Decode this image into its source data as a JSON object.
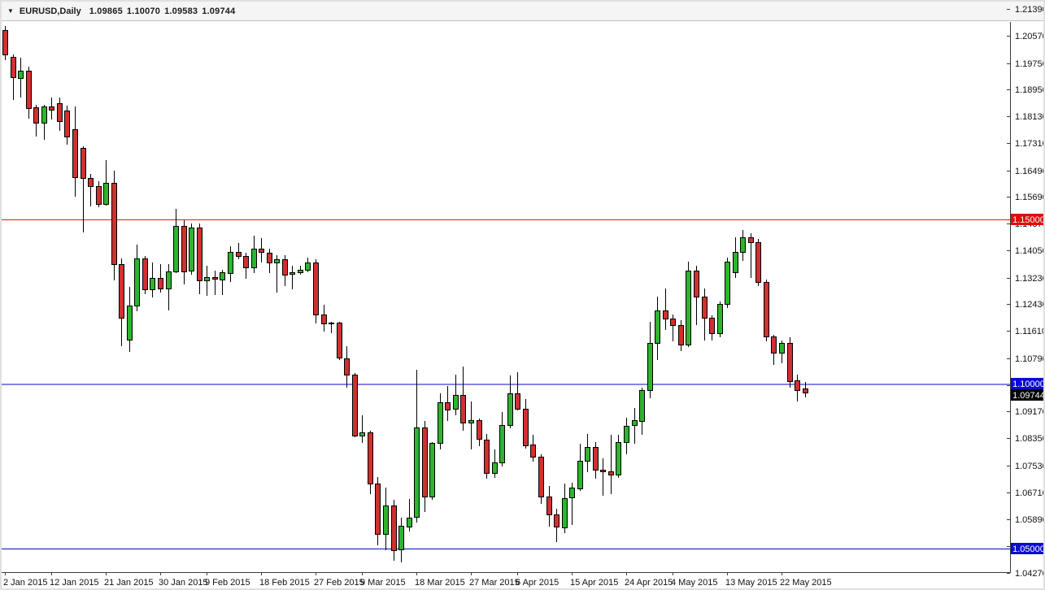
{
  "header": {
    "symbol_period": "EURUSD,Daily",
    "open": "1.09865",
    "high": "1.10070",
    "low": "1.09583",
    "close": "1.09744"
  },
  "colors": {
    "bull_body": "#2eb42e",
    "bear_body": "#d13030",
    "outline": "#000000",
    "axis": "#3a3a3a",
    "text": "#111111",
    "resistance_line": "#ee1111",
    "support_line": "#0808c8",
    "resistance_badge": "#dd0d0d",
    "support_badge": "#0b0bd0",
    "current_badge": "#000000",
    "badge_text": "#ffffff",
    "background": "#ffffff"
  },
  "chart_data": {
    "type": "candlestick",
    "symbol": "EURUSD",
    "timeframe": "Daily",
    "ylim": [
      1.0427,
      1.2139
    ],
    "grid": false,
    "y_axis_ticks": [
      "1.21390",
      "1.20570",
      "1.19750",
      "1.18950",
      "1.18130",
      "1.17310",
      "1.16490",
      "1.15690",
      "1.14870",
      "1.14050",
      "1.13230",
      "1.12430",
      "1.11610",
      "1.10790",
      "1.09970",
      "1.09170",
      "1.08350",
      "1.07530",
      "1.06710",
      "1.05890",
      "1.05080",
      "1.04270"
    ],
    "x_axis_labels": [
      {
        "label": "2 Jan 2015",
        "index": 0
      },
      {
        "label": "12 Jan 2015",
        "index": 6
      },
      {
        "label": "21 Jan 2015",
        "index": 13
      },
      {
        "label": "30 Jan 2015",
        "index": 20
      },
      {
        "label": "9 Feb 2015",
        "index": 26
      },
      {
        "label": "18 Feb 2015",
        "index": 33
      },
      {
        "label": "27 Feb 2015",
        "index": 40
      },
      {
        "label": "9 Mar 2015",
        "index": 46
      },
      {
        "label": "18 Mar 2015",
        "index": 53
      },
      {
        "label": "27 Mar 2015",
        "index": 60
      },
      {
        "label": "6 Apr 2015",
        "index": 66
      },
      {
        "label": "15 Apr 2015",
        "index": 73
      },
      {
        "label": "24 Apr 2015",
        "index": 80
      },
      {
        "label": "4 May 2015",
        "index": 86
      },
      {
        "label": "13 May 2015",
        "index": 93
      },
      {
        "label": "22 May 2015",
        "index": 100
      }
    ],
    "hlines": [
      {
        "price": 1.15,
        "badge": "1.15000",
        "kind": "resistance"
      },
      {
        "price": 1.1,
        "badge": "1.10000",
        "kind": "support"
      },
      {
        "price": 1.05,
        "badge": "1.05000",
        "kind": "support"
      }
    ],
    "current_price": {
      "value": 1.09744,
      "badge": "1.09744"
    },
    "candles": [
      {
        "d": "2 Jan",
        "o": 1.2075,
        "h": 1.2088,
        "l": 1.1985,
        "c": 1.2
      },
      {
        "d": "5 Jan",
        "o": 1.1995,
        "h": 1.2,
        "l": 1.1862,
        "c": 1.1933
      },
      {
        "d": "6 Jan",
        "o": 1.1931,
        "h": 1.1992,
        "l": 1.1871,
        "c": 1.1953
      },
      {
        "d": "7 Jan",
        "o": 1.1953,
        "h": 1.1964,
        "l": 1.1805,
        "c": 1.184
      },
      {
        "d": "8 Jan",
        "o": 1.184,
        "h": 1.1848,
        "l": 1.1752,
        "c": 1.1793
      },
      {
        "d": "9 Jan",
        "o": 1.1793,
        "h": 1.1847,
        "l": 1.1742,
        "c": 1.1843
      },
      {
        "d": "12 Jan",
        "o": 1.1843,
        "h": 1.1871,
        "l": 1.1804,
        "c": 1.1834
      },
      {
        "d": "13 Jan",
        "o": 1.1852,
        "h": 1.187,
        "l": 1.177,
        "c": 1.1798
      },
      {
        "d": "14 Jan",
        "o": 1.1832,
        "h": 1.1846,
        "l": 1.1728,
        "c": 1.1753
      },
      {
        "d": "15 Jan",
        "o": 1.1775,
        "h": 1.1844,
        "l": 1.1568,
        "c": 1.163
      },
      {
        "d": "16 Jan",
        "o": 1.1717,
        "h": 1.1722,
        "l": 1.146,
        "c": 1.1626
      },
      {
        "d": "19 Jan",
        "o": 1.1626,
        "h": 1.1639,
        "l": 1.154,
        "c": 1.1601
      },
      {
        "d": "20 Jan",
        "o": 1.1601,
        "h": 1.1617,
        "l": 1.1538,
        "c": 1.1546
      },
      {
        "d": "21 Jan",
        "o": 1.1546,
        "h": 1.168,
        "l": 1.1541,
        "c": 1.161
      },
      {
        "d": "22 Jan",
        "o": 1.161,
        "h": 1.1649,
        "l": 1.1315,
        "c": 1.1363
      },
      {
        "d": "23 Jan",
        "o": 1.1363,
        "h": 1.1382,
        "l": 1.1115,
        "c": 1.1201
      },
      {
        "d": "26 Jan",
        "o": 1.1135,
        "h": 1.1296,
        "l": 1.1098,
        "c": 1.1239
      },
      {
        "d": "27 Jan",
        "o": 1.1239,
        "h": 1.1423,
        "l": 1.1222,
        "c": 1.1382
      },
      {
        "d": "28 Jan",
        "o": 1.1382,
        "h": 1.139,
        "l": 1.1272,
        "c": 1.1287
      },
      {
        "d": "29 Jan",
        "o": 1.1287,
        "h": 1.1368,
        "l": 1.1262,
        "c": 1.1322
      },
      {
        "d": "30 Jan",
        "o": 1.1322,
        "h": 1.1363,
        "l": 1.1279,
        "c": 1.1291
      },
      {
        "d": "2 Feb",
        "o": 1.1291,
        "h": 1.1363,
        "l": 1.1224,
        "c": 1.1342
      },
      {
        "d": "3 Feb",
        "o": 1.1342,
        "h": 1.1533,
        "l": 1.1336,
        "c": 1.1481
      },
      {
        "d": "4 Feb",
        "o": 1.1481,
        "h": 1.1497,
        "l": 1.1303,
        "c": 1.1343
      },
      {
        "d": "5 Feb",
        "o": 1.1343,
        "h": 1.1488,
        "l": 1.1331,
        "c": 1.1475
      },
      {
        "d": "6 Feb",
        "o": 1.1475,
        "h": 1.1488,
        "l": 1.1272,
        "c": 1.1315
      },
      {
        "d": "9 Feb",
        "o": 1.1315,
        "h": 1.1359,
        "l": 1.1269,
        "c": 1.1324
      },
      {
        "d": "10 Feb",
        "o": 1.1324,
        "h": 1.1345,
        "l": 1.127,
        "c": 1.1318
      },
      {
        "d": "11 Feb",
        "o": 1.1318,
        "h": 1.1346,
        "l": 1.127,
        "c": 1.1339
      },
      {
        "d": "12 Feb",
        "o": 1.1339,
        "h": 1.1418,
        "l": 1.1309,
        "c": 1.1402
      },
      {
        "d": "13 Feb",
        "o": 1.1402,
        "h": 1.1429,
        "l": 1.1378,
        "c": 1.1389
      },
      {
        "d": "16 Feb",
        "o": 1.1389,
        "h": 1.1399,
        "l": 1.132,
        "c": 1.1355
      },
      {
        "d": "17 Feb",
        "o": 1.1355,
        "h": 1.145,
        "l": 1.1336,
        "c": 1.1411
      },
      {
        "d": "18 Feb",
        "o": 1.1411,
        "h": 1.1444,
        "l": 1.137,
        "c": 1.14
      },
      {
        "d": "19 Feb",
        "o": 1.14,
        "h": 1.141,
        "l": 1.1337,
        "c": 1.137
      },
      {
        "d": "20 Feb",
        "o": 1.137,
        "h": 1.1392,
        "l": 1.1278,
        "c": 1.138
      },
      {
        "d": "23 Feb",
        "o": 1.138,
        "h": 1.1391,
        "l": 1.1297,
        "c": 1.1334
      },
      {
        "d": "24 Feb",
        "o": 1.1334,
        "h": 1.1359,
        "l": 1.1288,
        "c": 1.1339
      },
      {
        "d": "25 Feb",
        "o": 1.1339,
        "h": 1.136,
        "l": 1.1331,
        "c": 1.1347
      },
      {
        "d": "26 Feb",
        "o": 1.1347,
        "h": 1.1385,
        "l": 1.134,
        "c": 1.1368
      },
      {
        "d": "27 Feb",
        "o": 1.1368,
        "h": 1.1379,
        "l": 1.1184,
        "c": 1.1211
      },
      {
        "d": "2 Mar",
        "o": 1.1211,
        "h": 1.124,
        "l": 1.116,
        "c": 1.1183
      },
      {
        "d": "3 Mar",
        "o": 1.1183,
        "h": 1.119,
        "l": 1.1155,
        "c": 1.1186
      },
      {
        "d": "4 Mar",
        "o": 1.1186,
        "h": 1.1189,
        "l": 1.1072,
        "c": 1.1079
      },
      {
        "d": "5 Mar",
        "o": 1.1079,
        "h": 1.1114,
        "l": 1.0988,
        "c": 1.1029
      },
      {
        "d": "6 Mar",
        "o": 1.1029,
        "h": 1.1033,
        "l": 1.0838,
        "c": 1.0843
      },
      {
        "d": "9 Mar",
        "o": 1.0843,
        "h": 1.0906,
        "l": 1.0822,
        "c": 1.0853
      },
      {
        "d": "10 Mar",
        "o": 1.0853,
        "h": 1.0858,
        "l": 1.0666,
        "c": 1.0697
      },
      {
        "d": "11 Mar",
        "o": 1.0697,
        "h": 1.0717,
        "l": 1.0511,
        "c": 1.0545
      },
      {
        "d": "12 Mar",
        "o": 1.0545,
        "h": 1.0684,
        "l": 1.0494,
        "c": 1.0632
      },
      {
        "d": "13 Mar",
        "o": 1.0632,
        "h": 1.0649,
        "l": 1.0462,
        "c": 1.0497
      },
      {
        "d": "16 Mar",
        "o": 1.0497,
        "h": 1.0593,
        "l": 1.0457,
        "c": 1.0568
      },
      {
        "d": "17 Mar",
        "o": 1.0568,
        "h": 1.0651,
        "l": 1.0551,
        "c": 1.0595
      },
      {
        "d": "18 Mar",
        "o": 1.0595,
        "h": 1.1043,
        "l": 1.0579,
        "c": 1.0867
      },
      {
        "d": "19 Mar",
        "o": 1.0867,
        "h": 1.0888,
        "l": 1.0612,
        "c": 1.0658
      },
      {
        "d": "20 Mar",
        "o": 1.0658,
        "h": 1.0824,
        "l": 1.0649,
        "c": 1.0821
      },
      {
        "d": "23 Mar",
        "o": 1.0821,
        "h": 1.0971,
        "l": 1.0801,
        "c": 1.0945
      },
      {
        "d": "24 Mar",
        "o": 1.0945,
        "h": 1.0995,
        "l": 1.0888,
        "c": 1.0924
      },
      {
        "d": "25 Mar",
        "o": 1.0924,
        "h": 1.1029,
        "l": 1.0906,
        "c": 1.0966
      },
      {
        "d": "26 Mar",
        "o": 1.0966,
        "h": 1.1052,
        "l": 1.0858,
        "c": 1.0882
      },
      {
        "d": "27 Mar",
        "o": 1.0882,
        "h": 1.0948,
        "l": 1.0801,
        "c": 1.089
      },
      {
        "d": "30 Mar",
        "o": 1.089,
        "h": 1.0895,
        "l": 1.0812,
        "c": 1.0832
      },
      {
        "d": "31 Mar",
        "o": 1.0832,
        "h": 1.0847,
        "l": 1.0713,
        "c": 1.0731
      },
      {
        "d": "1 Apr",
        "o": 1.0731,
        "h": 1.08,
        "l": 1.0715,
        "c": 1.0762
      },
      {
        "d": "2 Apr",
        "o": 1.0762,
        "h": 1.0916,
        "l": 1.075,
        "c": 1.0876
      },
      {
        "d": "3 Apr",
        "o": 1.0876,
        "h": 1.1026,
        "l": 1.0866,
        "c": 1.0972
      },
      {
        "d": "6 Apr",
        "o": 1.0972,
        "h": 1.1035,
        "l": 1.0919,
        "c": 1.0925
      },
      {
        "d": "7 Apr",
        "o": 1.0925,
        "h": 1.0955,
        "l": 1.0803,
        "c": 1.0815
      },
      {
        "d": "8 Apr",
        "o": 1.0815,
        "h": 1.0846,
        "l": 1.0763,
        "c": 1.0778
      },
      {
        "d": "9 Apr",
        "o": 1.0778,
        "h": 1.0786,
        "l": 1.0637,
        "c": 1.0658
      },
      {
        "d": "10 Apr",
        "o": 1.0658,
        "h": 1.0691,
        "l": 1.0567,
        "c": 1.0604
      },
      {
        "d": "13 Apr",
        "o": 1.0604,
        "h": 1.0621,
        "l": 1.052,
        "c": 1.0566
      },
      {
        "d": "14 Apr",
        "o": 1.0566,
        "h": 1.0698,
        "l": 1.0548,
        "c": 1.0654
      },
      {
        "d": "15 Apr",
        "o": 1.0654,
        "h": 1.0701,
        "l": 1.0571,
        "c": 1.0684
      },
      {
        "d": "16 Apr",
        "o": 1.0684,
        "h": 1.0818,
        "l": 1.0675,
        "c": 1.0767
      },
      {
        "d": "17 Apr",
        "o": 1.0767,
        "h": 1.0848,
        "l": 1.0733,
        "c": 1.0809
      },
      {
        "d": "20 Apr",
        "o": 1.0809,
        "h": 1.0824,
        "l": 1.0713,
        "c": 1.0739
      },
      {
        "d": "21 Apr",
        "o": 1.0739,
        "h": 1.0773,
        "l": 1.066,
        "c": 1.0735
      },
      {
        "d": "22 Apr",
        "o": 1.0735,
        "h": 1.0845,
        "l": 1.0666,
        "c": 1.0725
      },
      {
        "d": "23 Apr",
        "o": 1.0725,
        "h": 1.0845,
        "l": 1.0716,
        "c": 1.0823
      },
      {
        "d": "24 Apr",
        "o": 1.0823,
        "h": 1.0898,
        "l": 1.0787,
        "c": 1.0873
      },
      {
        "d": "27 Apr",
        "o": 1.0873,
        "h": 1.0927,
        "l": 1.0819,
        "c": 1.0889
      },
      {
        "d": "28 Apr",
        "o": 1.0889,
        "h": 1.099,
        "l": 1.0846,
        "c": 1.0982
      },
      {
        "d": "29 Apr",
        "o": 1.0982,
        "h": 1.1188,
        "l": 1.0958,
        "c": 1.1125
      },
      {
        "d": "30 Apr",
        "o": 1.1125,
        "h": 1.1265,
        "l": 1.1072,
        "c": 1.1224
      },
      {
        "d": "1 May",
        "o": 1.1224,
        "h": 1.129,
        "l": 1.1165,
        "c": 1.1199
      },
      {
        "d": "4 May",
        "o": 1.1199,
        "h": 1.1212,
        "l": 1.113,
        "c": 1.118
      },
      {
        "d": "5 May",
        "o": 1.118,
        "h": 1.1195,
        "l": 1.11,
        "c": 1.112
      },
      {
        "d": "6 May",
        "o": 1.112,
        "h": 1.1371,
        "l": 1.1113,
        "c": 1.1345
      },
      {
        "d": "7 May",
        "o": 1.1345,
        "h": 1.136,
        "l": 1.118,
        "c": 1.1266
      },
      {
        "d": "8 May",
        "o": 1.1266,
        "h": 1.129,
        "l": 1.1131,
        "c": 1.1201
      },
      {
        "d": "11 May",
        "o": 1.1201,
        "h": 1.1209,
        "l": 1.1131,
        "c": 1.1154
      },
      {
        "d": "12 May",
        "o": 1.1154,
        "h": 1.125,
        "l": 1.1141,
        "c": 1.1243
      },
      {
        "d": "13 May",
        "o": 1.1243,
        "h": 1.1383,
        "l": 1.1231,
        "c": 1.1372
      },
      {
        "d": "14 May",
        "o": 1.134,
        "h": 1.1446,
        "l": 1.1321,
        "c": 1.1401
      },
      {
        "d": "15 May",
        "o": 1.1401,
        "h": 1.1467,
        "l": 1.1375,
        "c": 1.1446
      },
      {
        "d": "18 May",
        "o": 1.1446,
        "h": 1.1458,
        "l": 1.1322,
        "c": 1.1432
      },
      {
        "d": "19 May",
        "o": 1.1432,
        "h": 1.1441,
        "l": 1.1298,
        "c": 1.1311
      },
      {
        "d": "20 May",
        "o": 1.1311,
        "h": 1.1318,
        "l": 1.1129,
        "c": 1.1145
      },
      {
        "d": "21 May",
        "o": 1.1145,
        "h": 1.115,
        "l": 1.1059,
        "c": 1.1096
      },
      {
        "d": "22 May",
        "o": 1.1096,
        "h": 1.1132,
        "l": 1.1062,
        "c": 1.1125
      },
      {
        "d": "25 May",
        "o": 1.1125,
        "h": 1.1143,
        "l": 1.0989,
        "c": 1.101
      },
      {
        "d": "26 May",
        "o": 1.101,
        "h": 1.1029,
        "l": 1.0948,
        "c": 1.0981
      },
      {
        "d": "27 May",
        "o": 1.09865,
        "h": 1.1007,
        "l": 1.09583,
        "c": 1.09744
      }
    ]
  }
}
